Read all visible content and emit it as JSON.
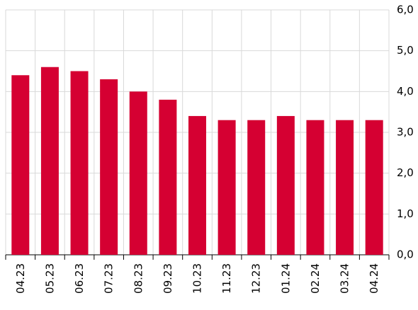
{
  "chart_data": {
    "type": "bar",
    "categories": [
      "04.23",
      "05.23",
      "06.23",
      "07.23",
      "08.23",
      "09.23",
      "10.23",
      "11.23",
      "12.23",
      "01.24",
      "02.24",
      "03.24",
      "04.24"
    ],
    "values": [
      4.4,
      4.6,
      4.5,
      4.3,
      4.0,
      3.8,
      3.4,
      3.3,
      3.3,
      3.4,
      3.3,
      3.3,
      3.3
    ],
    "color": "#d50032",
    "ylim": [
      0,
      6
    ],
    "yticks": [
      {
        "value": 0,
        "label": "0,0"
      },
      {
        "value": 1,
        "label": "1,0"
      },
      {
        "value": 2,
        "label": "2,0"
      },
      {
        "value": 3,
        "label": "3,0"
      },
      {
        "value": 4,
        "label": "4,0"
      },
      {
        "value": 5,
        "label": "5,0"
      },
      {
        "value": 6,
        "label": "6,0"
      }
    ],
    "grid": true,
    "y_axis_side": "right"
  }
}
